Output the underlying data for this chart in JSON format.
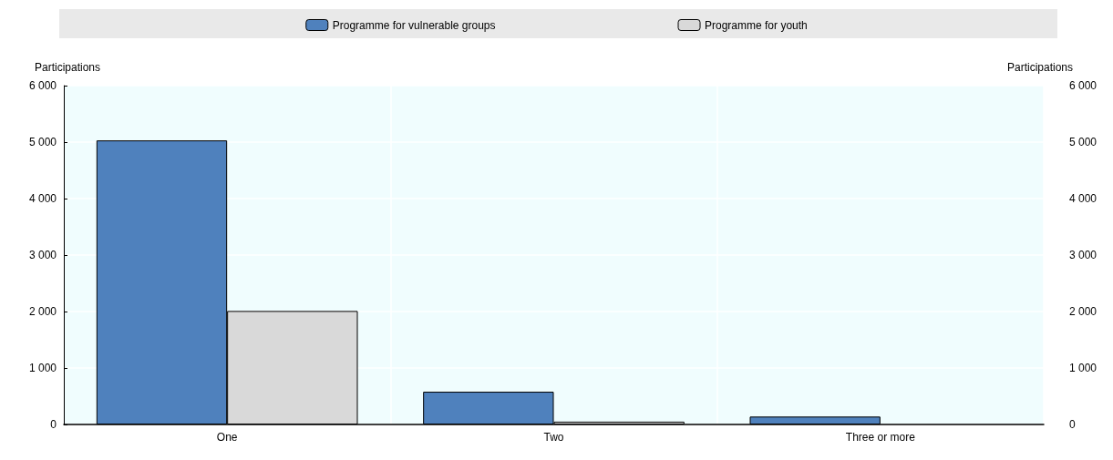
{
  "chart_data": {
    "type": "bar",
    "categories": [
      "One",
      "Two",
      "Three or more"
    ],
    "series": [
      {
        "name": "Programme for vulnerable groups",
        "color": "#4f81bd",
        "values": [
          5030,
          580,
          140
        ]
      },
      {
        "name": "Programme for youth",
        "color": "#d9d9d9",
        "values": [
          2010,
          50,
          null
        ]
      }
    ],
    "ylabel": "Participations",
    "y2label": "Participations",
    "ylim": [
      0,
      6000
    ],
    "yticks": [
      {
        "value": 0,
        "label": "0"
      },
      {
        "value": 1000,
        "label": "1 000"
      },
      {
        "value": 2000,
        "label": "2 000"
      },
      {
        "value": 3000,
        "label": "3 000"
      },
      {
        "value": 4000,
        "label": "4 000"
      },
      {
        "value": 5000,
        "label": "5 000"
      },
      {
        "value": 6000,
        "label": "6 000"
      }
    ],
    "y2lim": [
      0,
      6000
    ],
    "y2ticks": [
      {
        "value": 0,
        "label": "0"
      },
      {
        "value": 1000,
        "label": "1 000"
      },
      {
        "value": 2000,
        "label": "2 000"
      },
      {
        "value": 3000,
        "label": "3 000"
      },
      {
        "value": 4000,
        "label": "4 000"
      },
      {
        "value": 5000,
        "label": "5 000"
      },
      {
        "value": 6000,
        "label": "6 000"
      }
    ],
    "grid": true,
    "legend": "top"
  }
}
